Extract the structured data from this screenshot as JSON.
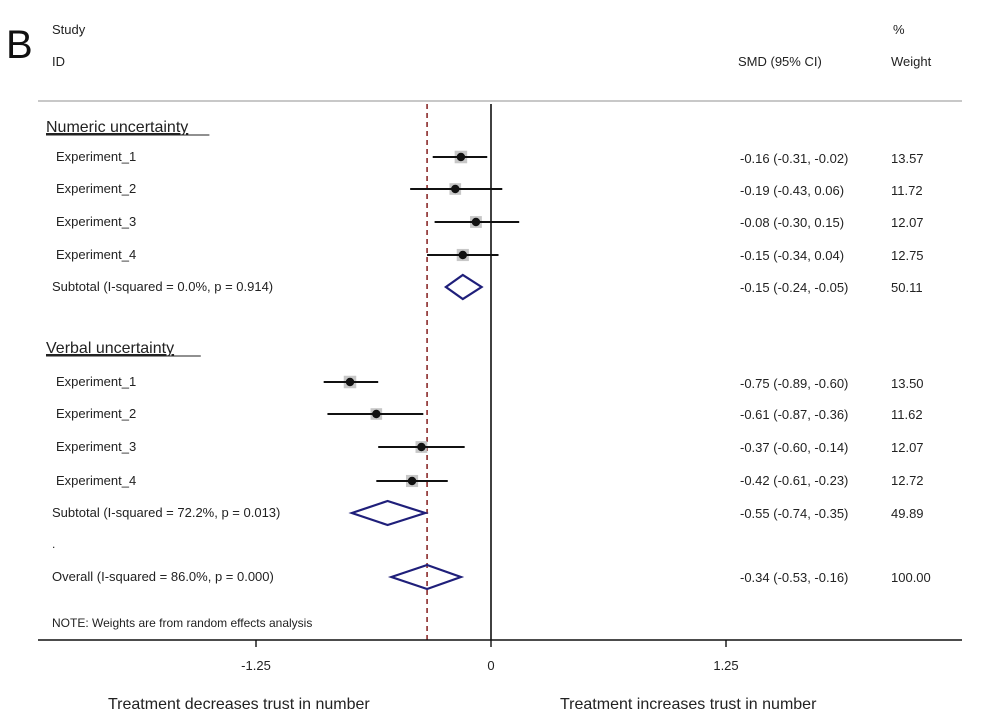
{
  "chart_data": {
    "type": "forest",
    "panel_label": "B",
    "columns": {
      "study_line1": "Study",
      "study_line2": "ID",
      "effect": "SMD (95% CI)",
      "weight_line1": "%",
      "weight_line2": "Weight"
    },
    "groups": [
      {
        "name": "Numeric uncertainty",
        "studies": [
          {
            "label": "Experiment_1",
            "smd": -0.16,
            "lower": -0.31,
            "upper": -0.02,
            "ci_text": "-0.16 (-0.31, -0.02)",
            "weight": 13.57,
            "weight_text": "13.57"
          },
          {
            "label": "Experiment_2",
            "smd": -0.19,
            "lower": -0.43,
            "upper": 0.06,
            "ci_text": "-0.19 (-0.43, 0.06)",
            "weight": 11.72,
            "weight_text": "11.72"
          },
          {
            "label": "Experiment_3",
            "smd": -0.08,
            "lower": -0.3,
            "upper": 0.15,
            "ci_text": "-0.08 (-0.30, 0.15)",
            "weight": 12.07,
            "weight_text": "12.07"
          },
          {
            "label": "Experiment_4",
            "smd": -0.15,
            "lower": -0.34,
            "upper": 0.04,
            "ci_text": "-0.15 (-0.34, 0.04)",
            "weight": 12.75,
            "weight_text": "12.75"
          }
        ],
        "subtotal": {
          "label": "Subtotal  (I-squared = 0.0%, p = 0.914)",
          "smd": -0.15,
          "lower": -0.24,
          "upper": -0.05,
          "ci_text": "-0.15 (-0.24, -0.05)",
          "weight_text": "50.11"
        }
      },
      {
        "name": "Verbal uncertainty",
        "studies": [
          {
            "label": "Experiment_1",
            "smd": -0.75,
            "lower": -0.89,
            "upper": -0.6,
            "ci_text": "-0.75 (-0.89, -0.60)",
            "weight": 13.5,
            "weight_text": "13.50"
          },
          {
            "label": "Experiment_2",
            "smd": -0.61,
            "lower": -0.87,
            "upper": -0.36,
            "ci_text": "-0.61 (-0.87, -0.36)",
            "weight": 11.62,
            "weight_text": "11.62"
          },
          {
            "label": "Experiment_3",
            "smd": -0.37,
            "lower": -0.6,
            "upper": -0.14,
            "ci_text": "-0.37 (-0.60, -0.14)",
            "weight": 12.07,
            "weight_text": "12.07"
          },
          {
            "label": "Experiment_4",
            "smd": -0.42,
            "lower": -0.61,
            "upper": -0.23,
            "ci_text": "-0.42 (-0.61, -0.23)",
            "weight": 12.72,
            "weight_text": "12.72"
          }
        ],
        "subtotal": {
          "label": "Subtotal  (I-squared = 72.2%, p = 0.013)",
          "smd": -0.55,
          "lower": -0.74,
          "upper": -0.35,
          "ci_text": "-0.55 (-0.74, -0.35)",
          "weight_text": "49.89"
        }
      }
    ],
    "separator_mark": ".",
    "overall": {
      "label": "Overall  (I-squared = 86.0%, p = 0.000)",
      "smd": -0.34,
      "lower": -0.53,
      "upper": -0.16,
      "ci_text": "-0.34 (-0.53, -0.16)",
      "weight_text": "100.00"
    },
    "note": "NOTE: Weights are from random effects analysis",
    "x_ticks": [
      {
        "value": -1.25,
        "label": "-1.25"
      },
      {
        "value": 0,
        "label": "0"
      },
      {
        "value": 1.25,
        "label": "1.25"
      }
    ],
    "xlim": [
      -2.4,
      2.5
    ],
    "null_line": 0,
    "overall_line": -0.34,
    "xlabel_left": "Treatment decreases trust in number",
    "xlabel_right": "Treatment increases trust in number",
    "colors": {
      "diamond": "#1f1f7a",
      "overall_line": "#8b2a2a",
      "point": "#111111",
      "weight_box": "#bdbdbd",
      "header_rule": "#c8c8c8"
    }
  }
}
